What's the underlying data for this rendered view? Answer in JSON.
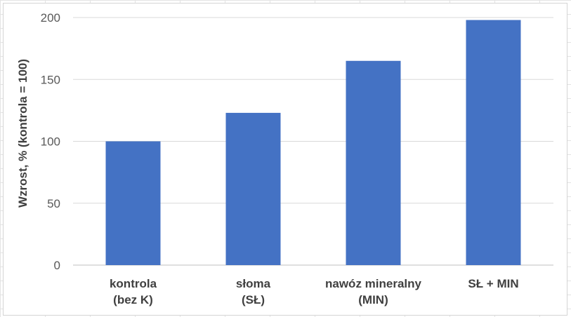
{
  "chart_data": {
    "type": "bar",
    "title": "",
    "xlabel": "",
    "ylabel": "Wzrost, % (kontrola = 100)",
    "ylim": [
      0,
      200
    ],
    "yticks": [
      0,
      50,
      100,
      150,
      200
    ],
    "grid": true,
    "categories": [
      [
        "kontrola",
        "(bez K)"
      ],
      [
        "słoma",
        "(SŁ)"
      ],
      [
        "nawóz mineralny",
        "(MIN)"
      ],
      [
        "SŁ + MIN"
      ]
    ],
    "values": [
      100,
      123,
      165,
      198
    ],
    "bar_color": "#4472C4",
    "gridline_color": "#D9D9D9"
  }
}
